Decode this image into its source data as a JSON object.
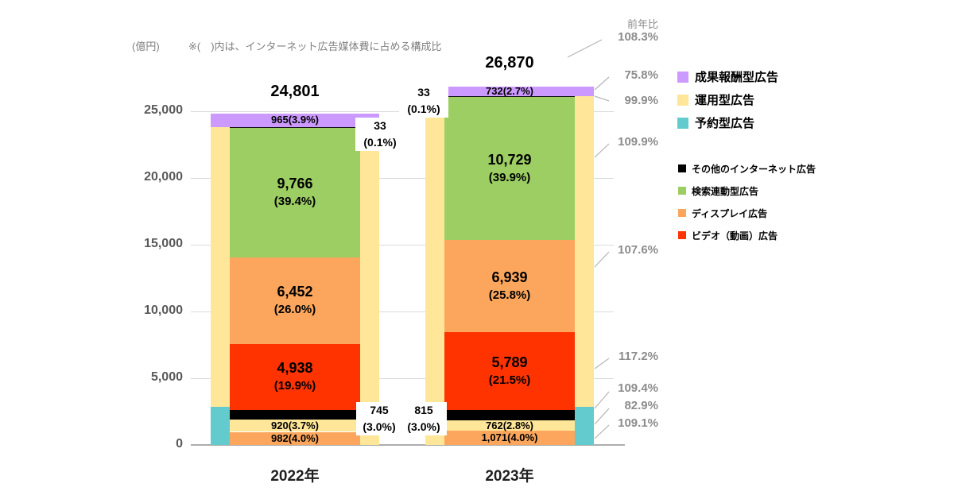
{
  "header": {
    "unit_label": "(億円)",
    "note": "※(　)内は、インターネット広告媒体費に占める構成比",
    "yoy_title": "前年比"
  },
  "palette": {
    "purple": "#CC99FF",
    "yellow": "#FFE699",
    "cyan": "#63CBCE",
    "green": "#9CCE63",
    "orange": "#FBA65C",
    "red": "#FF3300",
    "black": "#000000",
    "sliver": "#111111",
    "gray_text": "#8C8C8C",
    "leader_line": "#B5B5B5"
  },
  "legend": {
    "transaction_types": [
      {
        "label": "成果報酬型広告",
        "color_key": "purple"
      },
      {
        "label": "運用型広告",
        "color_key": "yellow"
      },
      {
        "label": "予約型広告",
        "color_key": "cyan"
      }
    ],
    "ad_types": [
      {
        "label": "その他のインターネット広告",
        "color_key": "black"
      },
      {
        "label": "検索連動型広告",
        "color_key": "green"
      },
      {
        "label": "ディスプレイ広告",
        "color_key": "orange"
      },
      {
        "label": "ビデオ（動画）広告",
        "color_key": "red"
      }
    ]
  },
  "chart_data": {
    "type": "bar",
    "stacked": true,
    "unit": "億円",
    "grid": true,
    "legend_position": "right",
    "ylim": [
      0,
      25000
    ],
    "yticks": [
      0,
      5000,
      10000,
      15000,
      20000,
      25000
    ],
    "ytick_labels": [
      "0",
      "5,000",
      "10,000",
      "15,000",
      "20,000",
      "25,000"
    ],
    "categories": [
      "2022年",
      "2023年"
    ],
    "bars": [
      {
        "category": "2022年",
        "total_value": 24801,
        "total_label": "24,801",
        "reserved_strip_side": "left",
        "segments": [
          {
            "value": 982,
            "label": "982(4.0%)",
            "color_key": "orange",
            "label_style": "inline"
          },
          {
            "value": 920,
            "label": "920(3.7%)",
            "color_key": "yellow",
            "label_style": "inline"
          },
          {
            "value": 745,
            "label": "745",
            "label2": "(3.0%)",
            "color_key": "black",
            "label_style": "outside"
          },
          {
            "value": 4938,
            "label": "4,938",
            "label2": "(19.9%)",
            "color_key": "red",
            "label_style": "stacked"
          },
          {
            "value": 6452,
            "label": "6,452",
            "label2": "(26.0%)",
            "color_key": "orange",
            "label_style": "stacked"
          },
          {
            "value": 9766,
            "label": "9,766",
            "label2": "(39.4%)",
            "color_key": "green",
            "label_style": "stacked"
          },
          {
            "value": 33,
            "label": "33",
            "label2": "(0.1%)",
            "color_key": "sliver",
            "label_style": "outside"
          },
          {
            "value": 965,
            "label": "965(3.9%)",
            "color_key": "purple",
            "label_style": "inline",
            "full_width": true
          }
        ]
      },
      {
        "category": "2023年",
        "total_value": 26870,
        "total_label": "26,870",
        "reserved_strip_side": "right",
        "segments": [
          {
            "value": 1071,
            "label": "1,071(4.0%)",
            "color_key": "orange",
            "label_style": "inline"
          },
          {
            "value": 762,
            "label": "762(2.8%)",
            "color_key": "yellow",
            "label_style": "inline"
          },
          {
            "value": 815,
            "label": "815",
            "label2": "(3.0%)",
            "color_key": "black",
            "label_style": "outside"
          },
          {
            "value": 5789,
            "label": "5,789",
            "label2": "(21.5%)",
            "color_key": "red",
            "label_style": "stacked"
          },
          {
            "value": 6939,
            "label": "6,939",
            "label2": "(25.8%)",
            "color_key": "orange",
            "label_style": "stacked"
          },
          {
            "value": 10729,
            "label": "10,729",
            "label2": "(39.9%)",
            "color_key": "green",
            "label_style": "stacked"
          },
          {
            "value": 33,
            "label": "33",
            "label2": "(0.1%)",
            "color_key": "sliver",
            "label_style": "outside"
          },
          {
            "value": 732,
            "label": "732(2.7%)",
            "color_key": "purple",
            "label_style": "inline",
            "full_width": true
          }
        ]
      }
    ],
    "yoy": [
      "108.3%",
      "75.8%",
      "99.9%",
      "109.9%",
      "107.6%",
      "117.2%",
      "109.4%",
      "82.9%",
      "109.1%"
    ]
  }
}
